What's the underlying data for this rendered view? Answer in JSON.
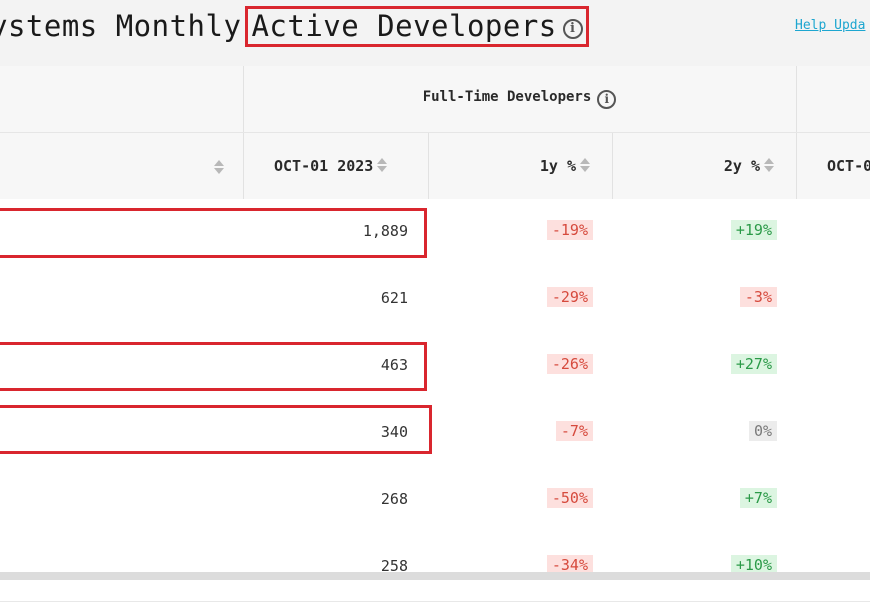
{
  "header": {
    "title_prefix": "ystems Monthly",
    "title_highlight": "Active Developers",
    "title_info_icon": "info-icon",
    "help_link": "Help Upda"
  },
  "table": {
    "group_header": {
      "label": "Full-Time Developers",
      "info_icon": "info-icon"
    },
    "columns": {
      "date": "OCT-01 2023",
      "one_year": "1y %",
      "two_year": "2y %",
      "next_date": "OCT-0"
    },
    "rows": [
      {
        "value": "1,889",
        "one_year": "-19%",
        "one_year_tone": "neg",
        "two_year": "+19%",
        "two_year_tone": "pos"
      },
      {
        "value": "621",
        "one_year": "-29%",
        "one_year_tone": "neg",
        "two_year": "-3%",
        "two_year_tone": "neg"
      },
      {
        "value": "463",
        "one_year": "-26%",
        "one_year_tone": "neg",
        "two_year": "+27%",
        "two_year_tone": "pos"
      },
      {
        "value": "340",
        "one_year": "-7%",
        "one_year_tone": "neg",
        "two_year": "0%",
        "two_year_tone": "zero"
      },
      {
        "value": "268",
        "one_year": "-50%",
        "one_year_tone": "neg",
        "two_year": "+7%",
        "two_year_tone": "pos"
      },
      {
        "value": "258",
        "one_year": "-34%",
        "one_year_tone": "neg",
        "two_year": "+10%",
        "two_year_tone": "pos"
      }
    ]
  },
  "colors": {
    "highlight_border": "#d9262e",
    "negative_bg": "#fde0de",
    "negative_text": "#d64a3d",
    "positive_bg": "#dcf5e1",
    "positive_text": "#2b9a48",
    "link": "#1da6d0"
  }
}
